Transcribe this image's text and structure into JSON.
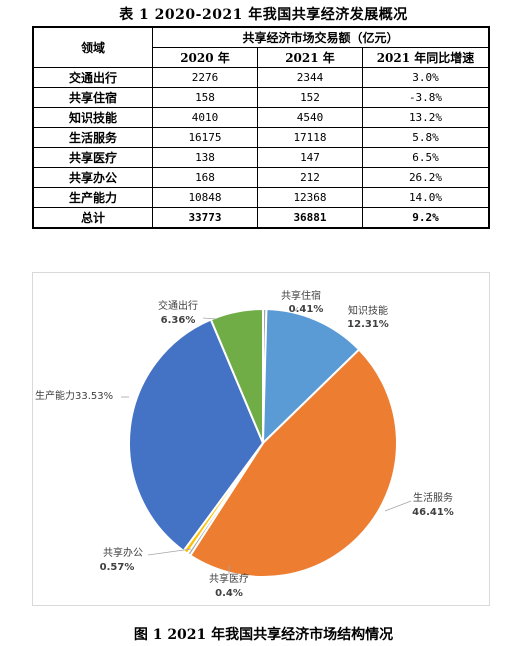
{
  "table_title": "表 1   2020-2021 年我国共享经济发展概况",
  "table": {
    "col_domain": "领域",
    "col_group": "共享经济市场交易额（亿元）",
    "col_2020": "2020 年",
    "col_2021": "2021 年",
    "col_growth": "2021 年同比增速",
    "rows": [
      {
        "name": "交通出行",
        "v2020": "2276",
        "v2021": "2344",
        "growth": "3.0%"
      },
      {
        "name": "共享住宿",
        "v2020": "158",
        "v2021": "152",
        "growth": "-3.8%"
      },
      {
        "name": "知识技能",
        "v2020": "4010",
        "v2021": "4540",
        "growth": "13.2%"
      },
      {
        "name": "生活服务",
        "v2020": "16175",
        "v2021": "17118",
        "growth": "5.8%"
      },
      {
        "name": "共享医疗",
        "v2020": "138",
        "v2021": "147",
        "growth": "6.5%"
      },
      {
        "name": "共享办公",
        "v2020": "168",
        "v2021": "212",
        "growth": "26.2%"
      },
      {
        "name": "生产能力",
        "v2020": "10848",
        "v2021": "12368",
        "growth": "14.0%"
      }
    ],
    "total": {
      "name": "总计",
      "v2020": "33773",
      "v2021": "36881",
      "growth": "9.2%"
    }
  },
  "figure_title": "图 1   2021 年我国共享经济市场结构情况",
  "chart_data": {
    "type": "pie",
    "title": "",
    "slices": [
      {
        "name": "共享住宿",
        "value": 0.41,
        "label": "0.41%",
        "color": "#a5a5a5"
      },
      {
        "name": "知识技能",
        "value": 12.31,
        "label": "12.31%",
        "color": "#5b9bd5"
      },
      {
        "name": "生活服务",
        "value": 46.41,
        "label": "46.41%",
        "color": "#ed7d31"
      },
      {
        "name": "共享医疗",
        "value": 0.4,
        "label": "0.4%",
        "color": "#a5a5a5"
      },
      {
        "name": "共享办公",
        "value": 0.57,
        "label": "0.57%",
        "color": "#ffc000"
      },
      {
        "name": "生产能力",
        "value": 33.53,
        "label": "33.53%",
        "color": "#4472c4"
      },
      {
        "name": "交通出行",
        "value": 6.36,
        "label": "6.36%",
        "color": "#70ad47"
      }
    ]
  }
}
